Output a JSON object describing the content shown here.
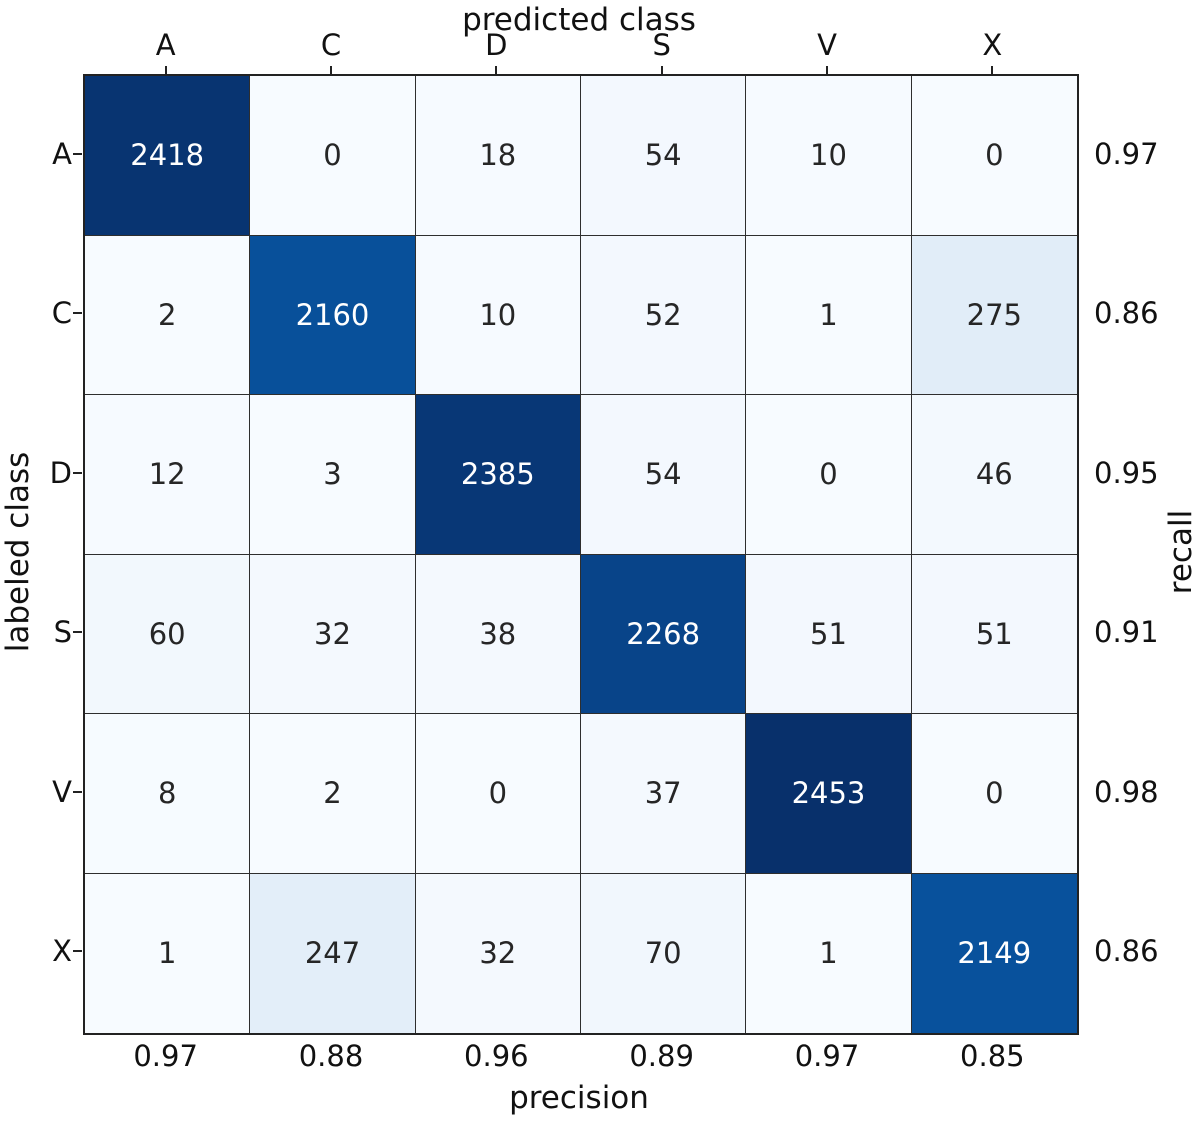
{
  "chart_data": {
    "type": "heatmap",
    "colormap": "Blues",
    "top_axis_label": "predicted class",
    "bottom_axis_label": "precision",
    "left_axis_label": "labeled class",
    "right_axis_label": "recall",
    "classes": [
      "A",
      "C",
      "D",
      "S",
      "V",
      "X"
    ],
    "matrix": [
      [
        2418,
        0,
        18,
        54,
        10,
        0
      ],
      [
        2,
        2160,
        10,
        52,
        1,
        275
      ],
      [
        12,
        3,
        2385,
        54,
        0,
        46
      ],
      [
        60,
        32,
        38,
        2268,
        51,
        51
      ],
      [
        8,
        2,
        0,
        37,
        2453,
        0
      ],
      [
        1,
        247,
        32,
        70,
        1,
        2149
      ]
    ],
    "recall": [
      "0.97",
      "0.86",
      "0.95",
      "0.91",
      "0.98",
      "0.86"
    ],
    "precision": [
      "0.97",
      "0.88",
      "0.96",
      "0.89",
      "0.97",
      "0.85"
    ],
    "vmin": 0,
    "vmax": 2453,
    "colors": {
      "dark_text": "#262626",
      "light_text": "#ffffff",
      "grid_line": "#2e2e2e",
      "min_cell": "#f7fbff",
      "max_cell": "#08306b"
    }
  }
}
